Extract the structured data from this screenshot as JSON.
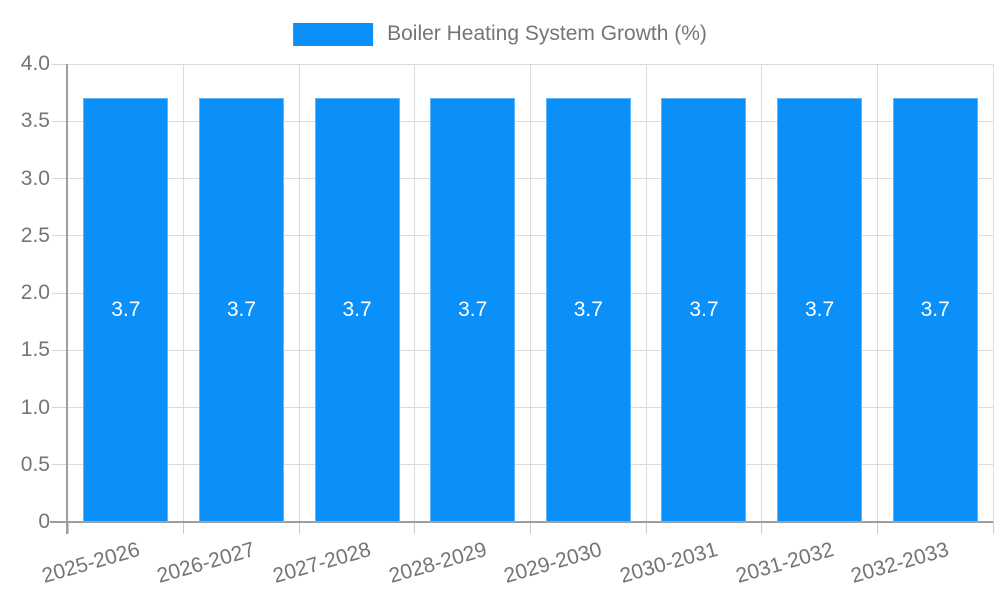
{
  "chart_data": {
    "type": "bar",
    "title": "",
    "legend": {
      "label": "Boiler Heating System Growth (%)",
      "position": "top-center"
    },
    "categories": [
      "2025-2026",
      "2026-2027",
      "2027-2028",
      "2028-2029",
      "2029-2030",
      "2030-2031",
      "2031-2032",
      "2032-2033"
    ],
    "series": [
      {
        "name": "Boiler Heating System Growth (%)",
        "values": [
          3.7,
          3.7,
          3.7,
          3.7,
          3.7,
          3.7,
          3.7,
          3.7
        ]
      }
    ],
    "value_labels": [
      "3.7",
      "3.7",
      "3.7",
      "3.7",
      "3.7",
      "3.7",
      "3.7",
      "3.7"
    ],
    "xlabel": "",
    "ylabel": "",
    "ylim": [
      0,
      4
    ],
    "yticks": [
      {
        "value": 0,
        "label": "0"
      },
      {
        "value": 0.5,
        "label": "0.5"
      },
      {
        "value": 1,
        "label": "1.0"
      },
      {
        "value": 1.5,
        "label": "1.5"
      },
      {
        "value": 2,
        "label": "2.0"
      },
      {
        "value": 2.5,
        "label": "2.5"
      },
      {
        "value": 3,
        "label": "3.0"
      },
      {
        "value": 3.5,
        "label": "3.5"
      },
      {
        "value": 4,
        "label": "4.0"
      }
    ],
    "grid": true,
    "x_label_rotation_deg": -16,
    "colors": {
      "bar": "#0A90F8",
      "bar_value_label": "#FFFFFF",
      "axis_line": "#9E9E9E",
      "gridline": "#DCDCDC",
      "tick_label": "#757575",
      "legend_text": "#757575",
      "background": "#FFFFFF"
    }
  }
}
